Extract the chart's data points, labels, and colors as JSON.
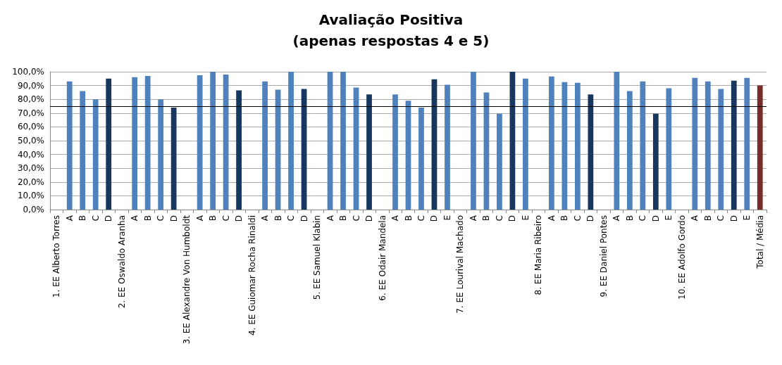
{
  "chart_data": {
    "type": "bar",
    "title": "Avaliação Positiva\n(apenas respostas 4 e 5)",
    "categories": [
      "1. EE Alberto Torres",
      "A",
      "B",
      "C",
      "D",
      "2. EE Oswaldo Aranha",
      "A",
      "B",
      "C",
      "D",
      "3. EE Alexandre Von Humboldt",
      "A",
      "B",
      "C",
      "D",
      "4. EE Guiomar Rocha Rinaldi",
      "A",
      "B",
      "C",
      "D",
      "5. EE Samuel Klabin",
      "A",
      "B",
      "C",
      "D",
      "6. EE Odair Mandela",
      "A",
      "B",
      "C",
      "D",
      "E",
      "7. EE Lourival Machado",
      "A",
      "B",
      "C",
      "D",
      "E",
      "8. EE Maria Ribeiro",
      "A",
      "B",
      "C",
      "D",
      "9. EE Daniel Pontes",
      "A",
      "B",
      "C",
      "D",
      "E",
      "10. EE Adolfo Gordo",
      "A",
      "B",
      "C",
      "D",
      "E",
      "Total / Média"
    ],
    "values": [
      null,
      93,
      86,
      80,
      95,
      null,
      96,
      97,
      80,
      74,
      null,
      97.5,
      100,
      98,
      86.5,
      null,
      93,
      87,
      100,
      87.5,
      null,
      100,
      100,
      88.5,
      83.5,
      null,
      83.5,
      79,
      74,
      94.5,
      90.5,
      null,
      100,
      85,
      69.5,
      100,
      95,
      null,
      96.5,
      92.5,
      92,
      83.5,
      null,
      100,
      86,
      93,
      69.5,
      88,
      null,
      95.5,
      93,
      87.5,
      93.5,
      95.5,
      90
    ],
    "colors": [
      "#4f81bd",
      "#4f81bd",
      "#4f81bd",
      "#4f81bd",
      "#17375e",
      "#4f81bd",
      "#4f81bd",
      "#4f81bd",
      "#4f81bd",
      "#17375e",
      "#4f81bd",
      "#4f81bd",
      "#4f81bd",
      "#4f81bd",
      "#17375e",
      "#4f81bd",
      "#4f81bd",
      "#4f81bd",
      "#4f81bd",
      "#17375e",
      "#4f81bd",
      "#4f81bd",
      "#4f81bd",
      "#4f81bd",
      "#17375e",
      "#4f81bd",
      "#4f81bd",
      "#4f81bd",
      "#4f81bd",
      "#17375e",
      "#4f81bd",
      "#4f81bd",
      "#4f81bd",
      "#4f81bd",
      "#4f81bd",
      "#17375e",
      "#4f81bd",
      "#4f81bd",
      "#4f81bd",
      "#4f81bd",
      "#4f81bd",
      "#17375e",
      "#4f81bd",
      "#4f81bd",
      "#4f81bd",
      "#4f81bd",
      "#17375e",
      "#4f81bd",
      "#4f81bd",
      "#4f81bd",
      "#4f81bd",
      "#4f81bd",
      "#17375e",
      "#4f81bd",
      "#772c2a"
    ],
    "ylim": [
      0,
      100
    ],
    "yticks": [
      {
        "value": 0,
        "label": "0,0%"
      },
      {
        "value": 10,
        "label": "10,0%"
      },
      {
        "value": 20,
        "label": "20,0%"
      },
      {
        "value": 30,
        "label": "30,0%"
      },
      {
        "value": 40,
        "label": "40,0%"
      },
      {
        "value": 50,
        "label": "50,0%"
      },
      {
        "value": 60,
        "label": "60,0%"
      },
      {
        "value": 70,
        "label": "70,0%"
      },
      {
        "value": 80,
        "label": "80,0%"
      },
      {
        "value": 90,
        "label": "90,0%"
      },
      {
        "value": 100,
        "label": "100,0%"
      }
    ],
    "ref_lines": [
      {
        "axis": "y",
        "value": 75,
        "color": "#000000"
      }
    ],
    "grid": "y"
  }
}
